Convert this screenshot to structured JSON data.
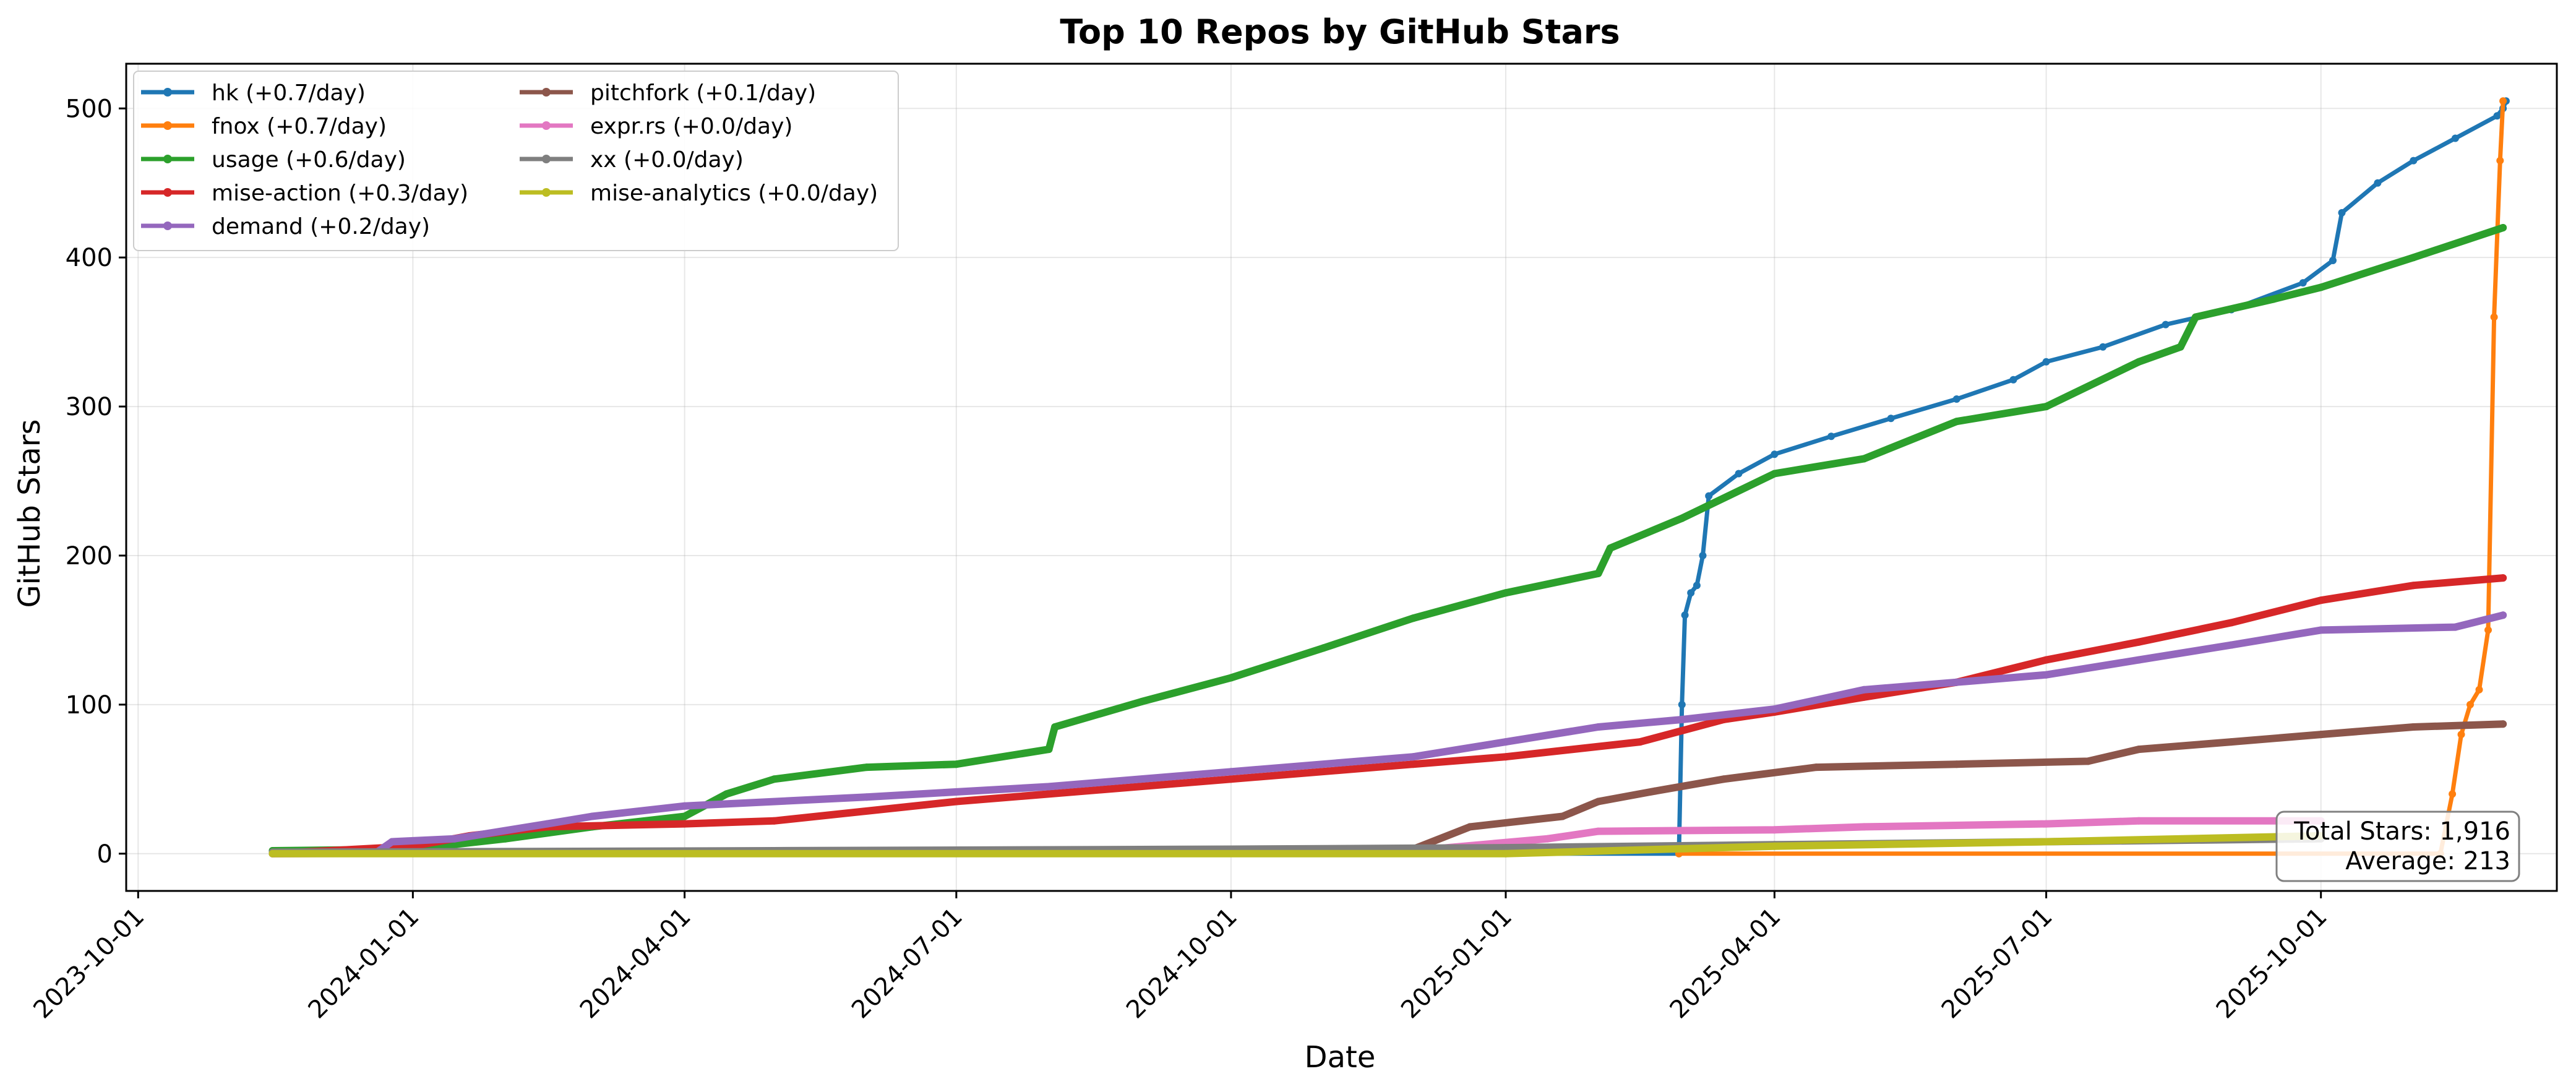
{
  "chart_data": {
    "type": "line",
    "title": "Top 10 Repos by GitHub Stars",
    "xlabel": "Date",
    "ylabel": "GitHub Stars",
    "x_axis": {
      "type": "date",
      "range": [
        "2023-09-27",
        "2025-12-19"
      ],
      "ticks": [
        "2023-10-01",
        "2024-01-01",
        "2024-04-01",
        "2024-07-01",
        "2024-10-01",
        "2025-01-01",
        "2025-04-01",
        "2025-07-01",
        "2025-10-01"
      ]
    },
    "y_axis": {
      "range": [
        -25,
        530
      ],
      "ticks": [
        0,
        100,
        200,
        300,
        400,
        500
      ]
    },
    "grid": true,
    "legend": {
      "placement": "top-left",
      "columns": 2
    },
    "annotation": {
      "lines": [
        "Total Stars: 1,916",
        "Average: 213"
      ],
      "placement": "bottom-right"
    },
    "series": [
      {
        "name": "hk (+0.7/day)",
        "color": "#1f77b4",
        "points": [
          [
            "2023-11-15",
            0
          ],
          [
            "2025-02-28",
            0
          ],
          [
            "2025-03-01",
            100
          ],
          [
            "2025-03-02",
            160
          ],
          [
            "2025-03-04",
            175
          ],
          [
            "2025-03-06",
            180
          ],
          [
            "2025-03-08",
            200
          ],
          [
            "2025-03-10",
            240
          ],
          [
            "2025-03-20",
            255
          ],
          [
            "2025-04-01",
            268
          ],
          [
            "2025-04-20",
            280
          ],
          [
            "2025-05-10",
            292
          ],
          [
            "2025-06-01",
            305
          ],
          [
            "2025-06-20",
            318
          ],
          [
            "2025-07-01",
            330
          ],
          [
            "2025-07-20",
            340
          ],
          [
            "2025-08-10",
            355
          ],
          [
            "2025-09-01",
            365
          ],
          [
            "2025-09-25",
            383
          ],
          [
            "2025-10-05",
            398
          ],
          [
            "2025-10-08",
            430
          ],
          [
            "2025-10-20",
            450
          ],
          [
            "2025-11-01",
            465
          ],
          [
            "2025-11-15",
            480
          ],
          [
            "2025-11-29",
            495
          ],
          [
            "2025-12-01",
            500
          ],
          [
            "2025-12-02",
            505
          ]
        ]
      },
      {
        "name": "fnox (+0.7/day)",
        "color": "#ff7f0e",
        "points": [
          [
            "2025-02-28",
            0
          ],
          [
            "2025-11-10",
            0
          ],
          [
            "2025-11-14",
            40
          ],
          [
            "2025-11-17",
            80
          ],
          [
            "2025-11-20",
            100
          ],
          [
            "2025-11-23",
            110
          ],
          [
            "2025-11-26",
            150
          ],
          [
            "2025-11-28",
            360
          ],
          [
            "2025-11-30",
            465
          ],
          [
            "2025-12-01",
            505
          ]
        ]
      },
      {
        "name": "usage (+0.6/day)",
        "color": "#2ca02c",
        "points": [
          [
            "2023-11-15",
            2
          ],
          [
            "2024-01-01",
            3
          ],
          [
            "2024-02-01",
            10
          ],
          [
            "2024-03-01",
            18
          ],
          [
            "2024-04-01",
            25
          ],
          [
            "2024-04-15",
            40
          ],
          [
            "2024-05-01",
            50
          ],
          [
            "2024-06-01",
            58
          ],
          [
            "2024-07-01",
            60
          ],
          [
            "2024-08-01",
            70
          ],
          [
            "2024-08-03",
            85
          ],
          [
            "2024-09-01",
            102
          ],
          [
            "2024-10-01",
            118
          ],
          [
            "2024-11-01",
            138
          ],
          [
            "2024-12-01",
            158
          ],
          [
            "2025-01-01",
            175
          ],
          [
            "2025-02-01",
            188
          ],
          [
            "2025-02-05",
            205
          ],
          [
            "2025-03-01",
            225
          ],
          [
            "2025-04-01",
            255
          ],
          [
            "2025-05-01",
            265
          ],
          [
            "2025-06-01",
            290
          ],
          [
            "2025-07-01",
            300
          ],
          [
            "2025-08-01",
            330
          ],
          [
            "2025-08-15",
            340
          ],
          [
            "2025-08-20",
            360
          ],
          [
            "2025-09-15",
            372
          ],
          [
            "2025-10-01",
            380
          ],
          [
            "2025-11-01",
            400
          ],
          [
            "2025-12-01",
            420
          ]
        ]
      },
      {
        "name": "mise-action (+0.3/day)",
        "color": "#d62728",
        "points": [
          [
            "2023-11-15",
            0
          ],
          [
            "2024-01-01",
            5
          ],
          [
            "2024-01-20",
            12
          ],
          [
            "2024-02-15",
            18
          ],
          [
            "2024-04-01",
            20
          ],
          [
            "2024-05-01",
            22
          ],
          [
            "2024-07-01",
            35
          ],
          [
            "2024-10-01",
            50
          ],
          [
            "2024-12-01",
            60
          ],
          [
            "2025-01-01",
            65
          ],
          [
            "2025-02-15",
            75
          ],
          [
            "2025-03-15",
            90
          ],
          [
            "2025-04-01",
            95
          ],
          [
            "2025-05-01",
            105
          ],
          [
            "2025-06-01",
            115
          ],
          [
            "2025-07-01",
            130
          ],
          [
            "2025-08-01",
            142
          ],
          [
            "2025-09-01",
            155
          ],
          [
            "2025-10-01",
            170
          ],
          [
            "2025-11-01",
            180
          ],
          [
            "2025-12-01",
            185
          ]
        ]
      },
      {
        "name": "demand (+0.2/day)",
        "color": "#9467bd",
        "points": [
          [
            "2023-11-15",
            0
          ],
          [
            "2023-12-20",
            1
          ],
          [
            "2023-12-25",
            8
          ],
          [
            "2024-01-15",
            10
          ],
          [
            "2024-02-15",
            20
          ],
          [
            "2024-03-01",
            25
          ],
          [
            "2024-04-01",
            32
          ],
          [
            "2024-06-01",
            38
          ],
          [
            "2024-08-01",
            45
          ],
          [
            "2024-10-01",
            55
          ],
          [
            "2024-12-01",
            65
          ],
          [
            "2025-01-01",
            75
          ],
          [
            "2025-02-01",
            85
          ],
          [
            "2025-03-01",
            90
          ],
          [
            "2025-04-01",
            97
          ],
          [
            "2025-05-01",
            110
          ],
          [
            "2025-06-01",
            115
          ],
          [
            "2025-07-01",
            120
          ],
          [
            "2025-08-01",
            130
          ],
          [
            "2025-09-01",
            140
          ],
          [
            "2025-10-01",
            150
          ],
          [
            "2025-11-15",
            152
          ],
          [
            "2025-12-01",
            160
          ]
        ]
      },
      {
        "name": "pitchfork (+0.1/day)",
        "color": "#8c564b",
        "points": [
          [
            "2023-11-15",
            0
          ],
          [
            "2024-12-01",
            3
          ],
          [
            "2024-12-20",
            18
          ],
          [
            "2025-01-20",
            25
          ],
          [
            "2025-02-01",
            35
          ],
          [
            "2025-02-20",
            42
          ],
          [
            "2025-03-15",
            50
          ],
          [
            "2025-04-15",
            58
          ],
          [
            "2025-06-01",
            60
          ],
          [
            "2025-07-15",
            62
          ],
          [
            "2025-08-01",
            70
          ],
          [
            "2025-09-01",
            75
          ],
          [
            "2025-10-01",
            80
          ],
          [
            "2025-11-01",
            85
          ],
          [
            "2025-12-01",
            87
          ]
        ]
      },
      {
        "name": "expr.rs (+0.0/day)",
        "color": "#e377c2",
        "points": [
          [
            "2023-11-15",
            0
          ],
          [
            "2024-12-01",
            2
          ],
          [
            "2025-01-15",
            10
          ],
          [
            "2025-02-01",
            15
          ],
          [
            "2025-04-01",
            16
          ],
          [
            "2025-05-01",
            18
          ],
          [
            "2025-07-01",
            20
          ],
          [
            "2025-08-01",
            22
          ],
          [
            "2025-10-01",
            22
          ]
        ]
      },
      {
        "name": "xx (+0.0/day)",
        "color": "#7f7f7f",
        "points": [
          [
            "2023-11-15",
            1
          ],
          [
            "2024-05-01",
            2
          ],
          [
            "2024-10-01",
            3
          ],
          [
            "2025-01-01",
            4
          ],
          [
            "2025-04-01",
            6
          ],
          [
            "2025-07-01",
            8
          ],
          [
            "2025-10-01",
            10
          ]
        ]
      },
      {
        "name": "mise-analytics (+0.0/day)",
        "color": "#bcbd22",
        "points": [
          [
            "2023-11-15",
            0
          ],
          [
            "2025-01-01",
            0
          ],
          [
            "2025-04-01",
            5
          ],
          [
            "2025-07-01",
            8
          ],
          [
            "2025-10-01",
            12
          ]
        ]
      }
    ]
  }
}
